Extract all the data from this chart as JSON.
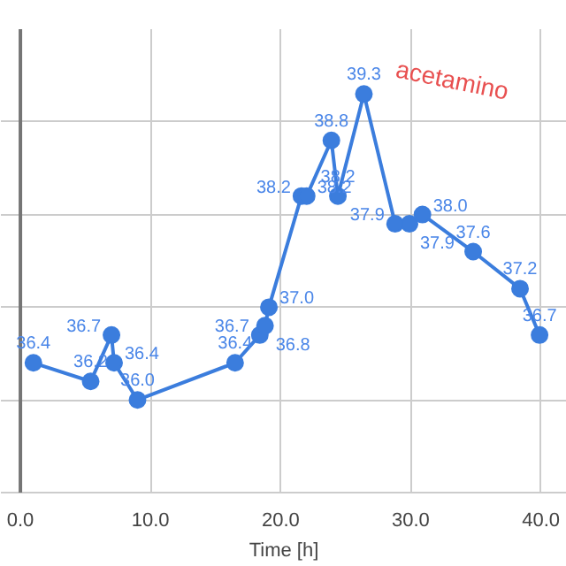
{
  "chart_data": {
    "type": "line",
    "xlabel": "Time [h]",
    "series": [
      {
        "color": "#3b7ddd",
        "x": [
          1.0,
          5.4,
          7.0,
          7.2,
          9.0,
          16.5,
          18.4,
          18.8,
          19.1,
          21.6,
          22.0,
          23.9,
          24.4,
          26.4,
          28.8,
          29.9,
          30.9,
          34.8,
          38.4,
          39.9
        ],
        "values": [
          36.4,
          36.2,
          36.7,
          36.4,
          36.0,
          36.4,
          36.7,
          36.8,
          37.0,
          38.2,
          38.2,
          38.8,
          38.2,
          39.3,
          37.9,
          37.9,
          38.0,
          37.6,
          37.2,
          36.7
        ],
        "value_labels": [
          "36.4",
          "36.2",
          "36.7",
          "36.4",
          "36.0",
          "36.4",
          "36.7",
          "36.8",
          "37.0",
          "38.2",
          "38.2",
          "38.8",
          "38.2",
          "39.3",
          "37.9",
          "37.9",
          "38.0",
          "37.6",
          "37.2",
          "36.7"
        ]
      }
    ],
    "marker": "circle",
    "grid": true,
    "tick_labels": "x",
    "xlim": [
      -1.5,
      42
    ],
    "xticks": [
      {
        "value": 0,
        "label": "0.0"
      },
      {
        "value": 10,
        "label": "10.0"
      },
      {
        "value": 20,
        "label": "20.0"
      },
      {
        "value": 30,
        "label": "30.0"
      },
      {
        "value": 40,
        "label": "40.0"
      }
    ],
    "ylim": [
      35,
      40
    ],
    "yticks": [
      {
        "value": 36,
        "label": null
      },
      {
        "value": 37,
        "label": null
      },
      {
        "value": 38,
        "label": null
      },
      {
        "value": 39,
        "label": null
      }
    ],
    "ref_lines": [
      {
        "axis": "x",
        "value": 0,
        "color": "#757575"
      }
    ],
    "annotations": [
      "acetamino"
    ]
  }
}
